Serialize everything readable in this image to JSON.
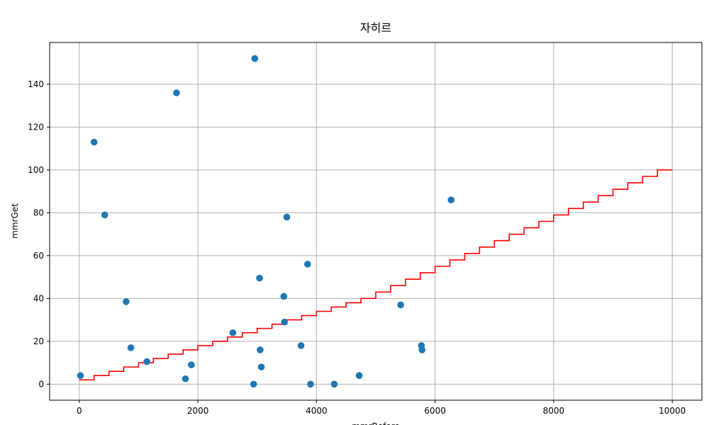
{
  "chart_data": {
    "type": "scatter",
    "title": "자히르",
    "xlabel": "mmrBefore",
    "ylabel": "mmrGet",
    "xlim": [
      -500,
      10500
    ],
    "ylim": [
      -7.5,
      159.5
    ],
    "xticks": [
      0,
      2000,
      4000,
      6000,
      8000,
      10000
    ],
    "yticks": [
      0,
      20,
      40,
      60,
      80,
      100,
      120,
      140
    ],
    "grid": true,
    "colors": {
      "points": "#1f77b4",
      "step": "#ff0000",
      "grid": "#b0b0b0",
      "frame": "#000000"
    },
    "series": [
      {
        "kind": "scatter",
        "x": [
          20,
          250,
          430,
          790,
          870,
          1140,
          1640,
          1790,
          1890,
          2590,
          2940,
          2960,
          3040,
          3050,
          3070,
          3450,
          3460,
          3500,
          3740,
          3850,
          3900,
          4300,
          4720,
          5420,
          5770,
          5780,
          6270
        ],
        "y": [
          4,
          113,
          79,
          38.5,
          17,
          10.5,
          136,
          2.5,
          9,
          24,
          0,
          152,
          49.5,
          16,
          8,
          41,
          29,
          78,
          18,
          56,
          0,
          0,
          4,
          37,
          18,
          16,
          86
        ]
      },
      {
        "kind": "step",
        "x": [
          0,
          250,
          500,
          750,
          1000,
          1250,
          1500,
          1750,
          2000,
          2250,
          2500,
          2750,
          3000,
          3250,
          3500,
          3750,
          4000,
          4250,
          4500,
          4750,
          5000,
          5250,
          5500,
          5750,
          6000,
          6250,
          6500,
          6750,
          7000,
          7250,
          7500,
          7750,
          8000,
          8250,
          8500,
          8750,
          9000,
          9250,
          9500,
          9750,
          10000
        ],
        "y": [
          2,
          4,
          6,
          8,
          10,
          12,
          14,
          16,
          18,
          20,
          22,
          24,
          26,
          28,
          30,
          32,
          34,
          36,
          38,
          40,
          43,
          46,
          49,
          52,
          55,
          58,
          61,
          64,
          67,
          70,
          73,
          76,
          79,
          82,
          85,
          88,
          91,
          94,
          97,
          100,
          100
        ]
      }
    ]
  }
}
